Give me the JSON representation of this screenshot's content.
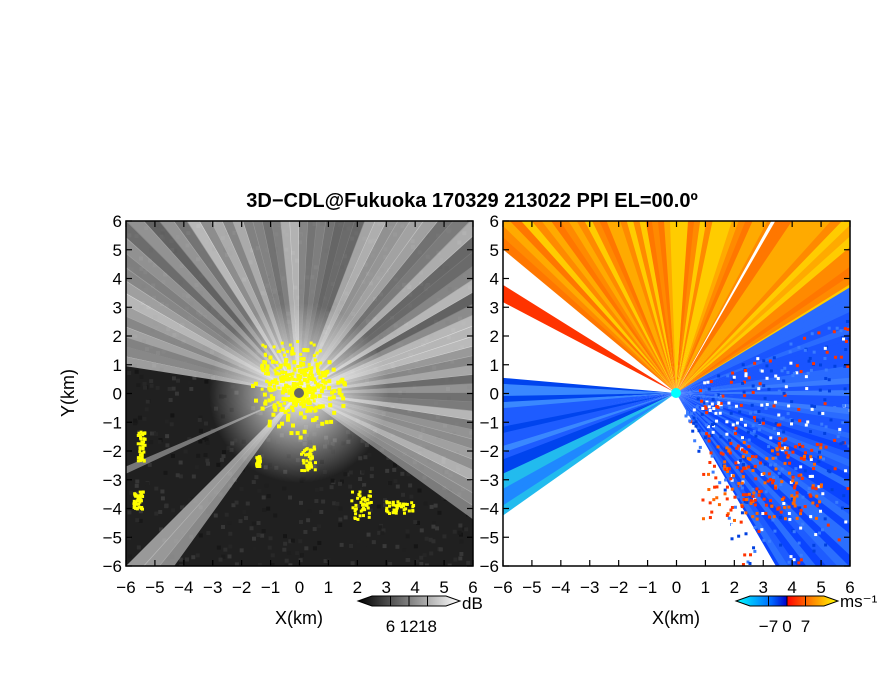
{
  "title": "3D−CDL@Fukuoka 170329 213022 PPI EL=00.0º",
  "chart_data": [
    {
      "type": "heatmap",
      "panel": "reflectivity",
      "xlabel": "X(km)",
      "ylabel": "Y(km)",
      "xlim": [
        -6,
        6
      ],
      "ylim": [
        -6,
        6
      ],
      "ticks": [
        -6,
        -5,
        -4,
        -3,
        -2,
        -1,
        0,
        1,
        2,
        3,
        4,
        5,
        6
      ],
      "tick_labels": [
        "−6",
        "−5",
        "−4",
        "−3",
        "−2",
        "−1",
        "0",
        "1",
        "2",
        "3",
        "4",
        "5",
        "6"
      ],
      "colorbar": {
        "unit": "dB",
        "ticks": [
          "6",
          "12",
          "18"
        ],
        "colors": [
          "#000000",
          "#ffffff"
        ],
        "range": [
          0,
          24
        ]
      },
      "highlight_color": "#ffff00",
      "blocked_sectors_deg": [
        [
          170,
          225
        ],
        [
          235,
          325
        ]
      ]
    },
    {
      "type": "heatmap",
      "panel": "doppler-velocity",
      "xlabel": "X(km)",
      "ylabel": "",
      "xlim": [
        -6,
        6
      ],
      "ylim": [
        -6,
        6
      ],
      "ticks": [
        -6,
        -5,
        -4,
        -3,
        -2,
        -1,
        0,
        1,
        2,
        3,
        4,
        5,
        6
      ],
      "tick_labels": [
        "−6",
        "−5",
        "−4",
        "−3",
        "−2",
        "−1",
        "0",
        "1",
        "2",
        "3",
        "4",
        "5",
        "6"
      ],
      "colorbar": {
        "unit": "ms⁻¹",
        "ticks": [
          "−7",
          "0",
          "7"
        ],
        "range": [
          -14,
          14
        ],
        "colors": [
          "#00ffff",
          "#0066ff",
          "#0000cc",
          "#ff0000",
          "#ff8800",
          "#ffff00"
        ]
      }
    }
  ]
}
